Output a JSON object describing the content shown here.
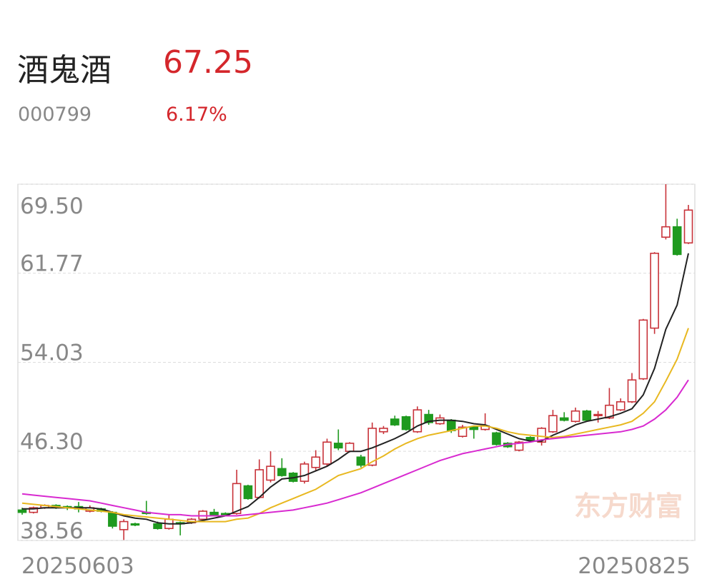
{
  "header": {
    "name": "酒鬼酒",
    "price": "67.25",
    "code": "000799",
    "change": "6.17%"
  },
  "watermark": "东方财富",
  "chart_data": {
    "type": "candlestick",
    "categories": [
      "20250603",
      null,
      null,
      null,
      null,
      null,
      null,
      null,
      null,
      null,
      null,
      null,
      null,
      null,
      null,
      null,
      null,
      null,
      null,
      null,
      null,
      null,
      null,
      null,
      null,
      null,
      null,
      null,
      null,
      null,
      null,
      null,
      null,
      null,
      null,
      null,
      null,
      null,
      null,
      null,
      null,
      null,
      null,
      null,
      null,
      null,
      null,
      null,
      null,
      null,
      null,
      null,
      null,
      null,
      null,
      null,
      null,
      null,
      null,
      "20250825"
    ],
    "open": [
      41.2,
      41.0,
      41.4,
      41.6,
      41.5,
      41.5,
      41.1,
      41.3,
      41.0,
      39.5,
      40.0,
      41.0,
      40.0,
      39.6,
      40.1,
      40.1,
      40.4,
      41.0,
      40.9,
      40.9,
      43.3,
      42.3,
      43.8,
      44.8,
      44.4,
      43.7,
      44.9,
      45.2,
      47.0,
      46.3,
      45.8,
      45.1,
      48.0,
      49.1,
      49.3,
      48.0,
      49.5,
      48.7,
      49.0,
      47.6,
      48.4,
      48.2,
      47.9,
      47.0,
      46.4,
      47.5,
      47.1,
      48.0,
      49.2,
      48.9,
      49.8,
      49.4,
      49.2,
      49.9,
      50.6,
      52.6,
      57.0,
      64.9,
      65.8,
      64.4
    ],
    "high": [
      41.4,
      41.5,
      41.7,
      41.7,
      41.6,
      41.9,
      41.6,
      41.4,
      41.1,
      40.4,
      40.1,
      42.0,
      40.2,
      40.8,
      40.2,
      40.5,
      41.2,
      41.3,
      41.0,
      44.7,
      43.4,
      45.6,
      46.3,
      45.7,
      44.5,
      45.4,
      46.4,
      47.4,
      48.2,
      47.1,
      46.0,
      48.8,
      48.5,
      49.4,
      49.4,
      50.2,
      49.9,
      49.5,
      49.1,
      48.6,
      48.5,
      49.6,
      48.0,
      47.1,
      47.2,
      47.6,
      48.4,
      49.9,
      49.7,
      50.1,
      49.9,
      49.8,
      51.8,
      50.9,
      53.1,
      57.8,
      63.6,
      69.5,
      66.5,
      67.7
    ],
    "low": [
      40.8,
      40.9,
      41.3,
      41.3,
      41.2,
      41.0,
      41.0,
      41.0,
      39.6,
      38.6,
      39.8,
      40.8,
      39.5,
      39.5,
      39.0,
      40.0,
      40.3,
      40.7,
      40.7,
      40.8,
      42.1,
      42.2,
      43.6,
      44.1,
      43.6,
      43.5,
      44.6,
      45.0,
      46.4,
      46.2,
      44.9,
      45.0,
      47.8,
      48.5,
      48.1,
      47.9,
      48.6,
      48.6,
      47.9,
      47.5,
      47.4,
      48.1,
      46.8,
      46.6,
      46.3,
      47.2,
      46.8,
      47.9,
      48.9,
      48.8,
      48.9,
      48.8,
      49.1,
      49.8,
      50.5,
      52.5,
      56.5,
      64.7,
      63.3,
      64.3
    ],
    "close": [
      41.0,
      41.4,
      41.6,
      41.5,
      41.4,
      41.3,
      41.4,
      41.1,
      39.8,
      40.2,
      39.9,
      40.9,
      39.6,
      40.4,
      40.0,
      40.4,
      41.1,
      40.8,
      40.8,
      43.5,
      42.2,
      44.7,
      45.0,
      44.2,
      43.7,
      45.2,
      45.8,
      47.1,
      46.6,
      47.0,
      45.1,
      48.3,
      48.3,
      48.6,
      48.2,
      49.9,
      48.8,
      49.2,
      48.1,
      48.4,
      48.2,
      48.5,
      46.9,
      46.7,
      47.1,
      47.3,
      48.3,
      49.4,
      49.0,
      49.8,
      49.0,
      49.5,
      50.3,
      50.6,
      52.5,
      57.7,
      63.5,
      65.8,
      63.4,
      67.25
    ],
    "up_color": "#c8333a",
    "down_color": "#1f9a1f",
    "lines": [
      {
        "color": "#222222",
        "values": [
          41.3,
          41.3,
          41.4,
          41.4,
          41.4,
          41.4,
          41.4,
          41.3,
          41.0,
          40.7,
          40.5,
          40.4,
          40.1,
          40.0,
          40.0,
          40.1,
          40.3,
          40.5,
          40.7,
          41.1,
          41.5,
          42.3,
          43.2,
          43.9,
          44.0,
          44.2,
          44.6,
          45.0,
          45.6,
          46.3,
          46.3,
          46.6,
          47.0,
          47.4,
          47.9,
          48.5,
          48.9,
          49.0,
          49.0,
          48.9,
          48.7,
          48.6,
          48.2,
          47.8,
          47.4,
          47.2,
          47.2,
          47.7,
          48.1,
          48.6,
          48.9,
          49.1,
          49.3,
          49.6,
          50.0,
          51.2,
          53.5,
          56.9,
          59.0,
          63.5
        ]
      },
      {
        "color": "#e8b820",
        "values": [
          41.8,
          41.7,
          41.6,
          41.5,
          41.4,
          41.3,
          41.2,
          41.1,
          41.0,
          40.8,
          40.7,
          40.6,
          40.5,
          40.4,
          40.3,
          40.2,
          40.2,
          40.2,
          40.2,
          40.4,
          40.5,
          40.9,
          41.4,
          41.8,
          42.2,
          42.6,
          43.0,
          43.6,
          44.2,
          44.5,
          44.8,
          45.4,
          45.9,
          46.5,
          47.0,
          47.4,
          47.7,
          47.9,
          48.1,
          48.3,
          48.5,
          48.5,
          48.3,
          48.0,
          47.8,
          47.7,
          47.6,
          47.5,
          47.6,
          47.8,
          48.0,
          48.2,
          48.4,
          48.6,
          48.9,
          49.6,
          50.6,
          52.4,
          54.3,
          57.0
        ]
      },
      {
        "color": "#d82ad0",
        "values": [
          42.6,
          42.5,
          42.4,
          42.3,
          42.2,
          42.1,
          42.0,
          41.8,
          41.6,
          41.4,
          41.2,
          41.0,
          40.9,
          40.8,
          40.8,
          40.7,
          40.7,
          40.7,
          40.7,
          40.7,
          40.8,
          40.9,
          41.0,
          41.1,
          41.2,
          41.4,
          41.6,
          41.8,
          42.1,
          42.4,
          42.7,
          43.1,
          43.5,
          43.9,
          44.3,
          44.7,
          45.1,
          45.5,
          45.8,
          46.1,
          46.3,
          46.5,
          46.7,
          46.9,
          47.0,
          47.1,
          47.3,
          47.4,
          47.5,
          47.6,
          47.7,
          47.8,
          47.9,
          48.0,
          48.2,
          48.5,
          49.1,
          49.9,
          51.0,
          52.5
        ]
      }
    ],
    "ylim": [
      38.56,
      69.5
    ],
    "yticks": [
      {
        "value": 69.5,
        "label": "69.50"
      },
      61.77,
      54.03,
      {
        "value": 46.3,
        "label": "46.30"
      },
      38.56
    ],
    "grid": true
  }
}
